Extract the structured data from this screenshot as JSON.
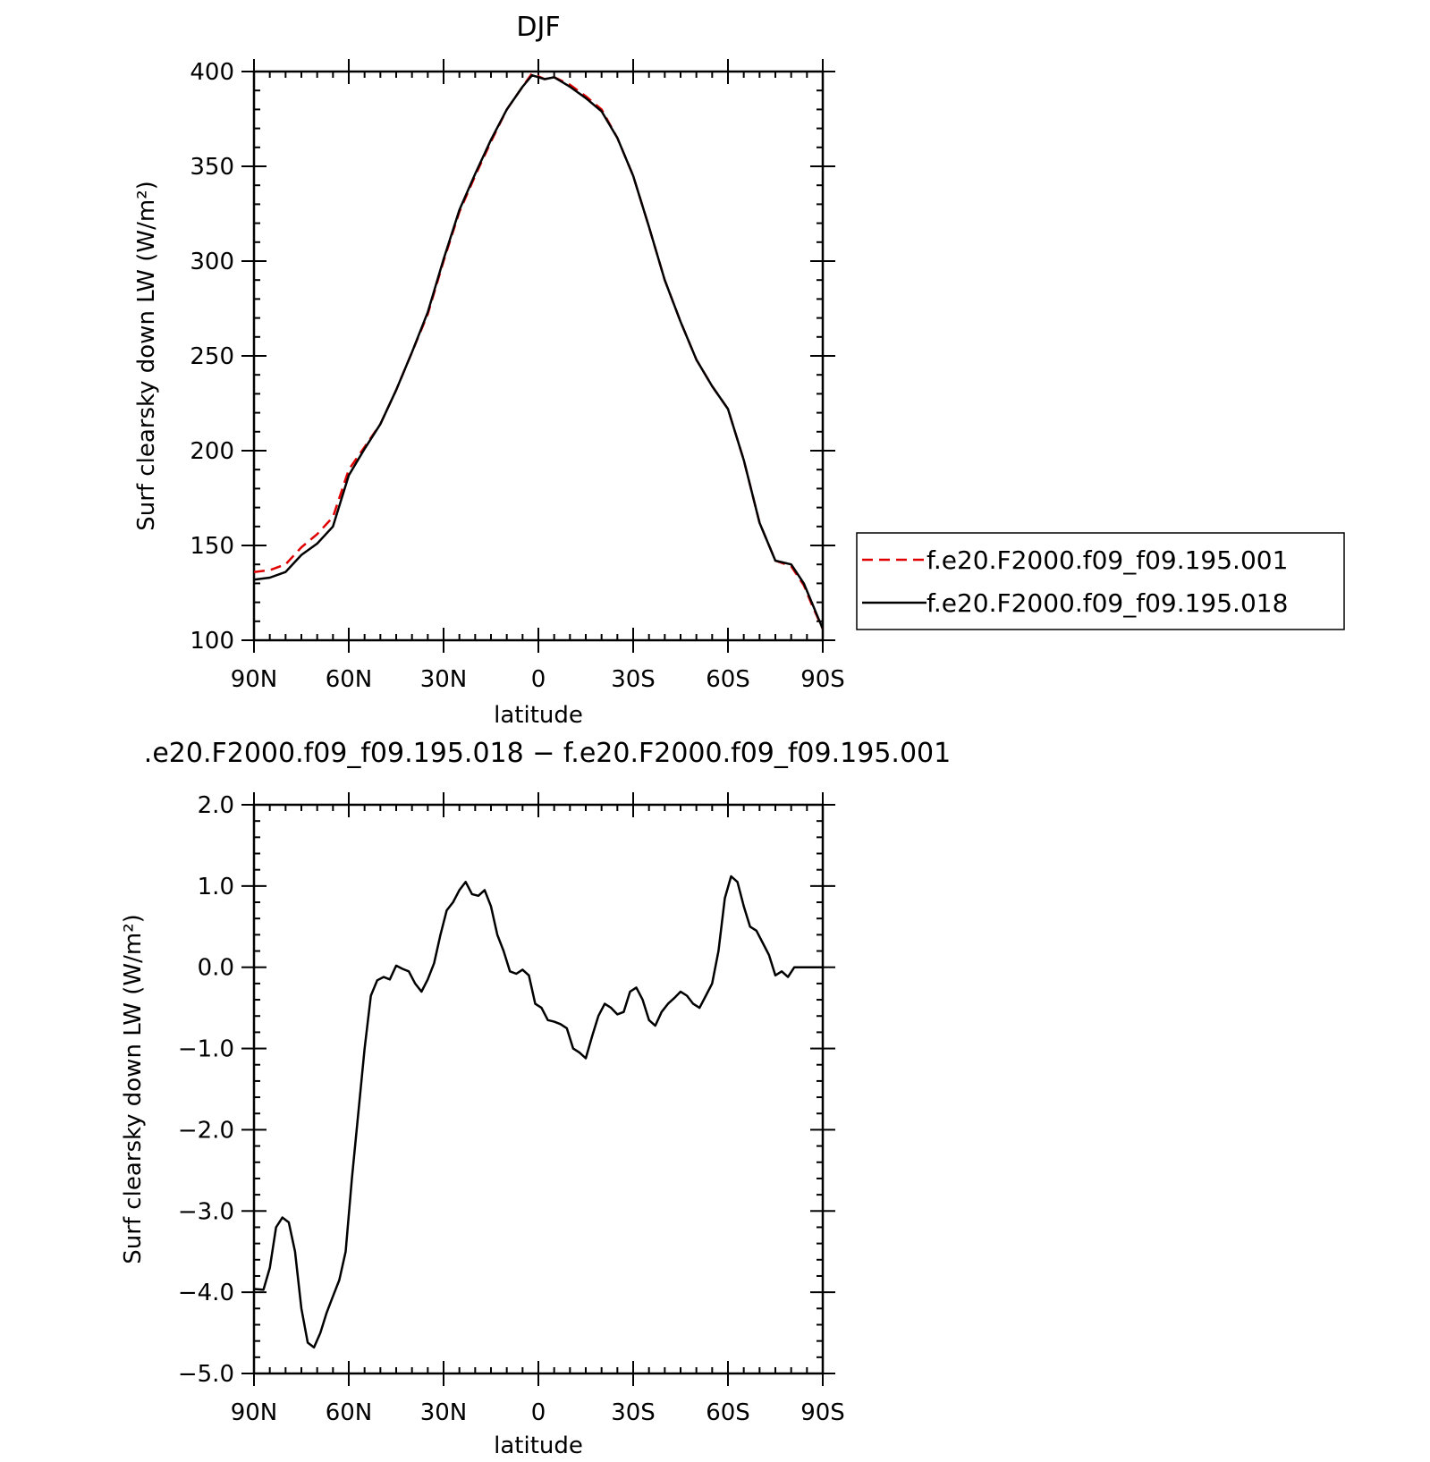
{
  "chart_data": [
    {
      "type": "line",
      "title": "DJF",
      "xlabel": "latitude",
      "ylabel": "Surf clearsky down LW (W/m²)",
      "xlim": [
        90,
        -90
      ],
      "ylim": [
        100,
        400
      ],
      "x_ticks": [
        {
          "value": 90,
          "label": "90N"
        },
        {
          "value": 60,
          "label": "60N"
        },
        {
          "value": 30,
          "label": "30N"
        },
        {
          "value": 0,
          "label": "0"
        },
        {
          "value": -30,
          "label": "30S"
        },
        {
          "value": -60,
          "label": "60S"
        },
        {
          "value": -90,
          "label": "90S"
        }
      ],
      "y_ticks": [
        "100",
        "150",
        "200",
        "250",
        "300",
        "350",
        "400"
      ],
      "grid": false,
      "legend_position": "right",
      "series": [
        {
          "name": "f.e20.F2000.f09_f09.195.001",
          "color": "#e00000",
          "dash": "dashed",
          "x": [
            90,
            85,
            80,
            75,
            70,
            65,
            60,
            55,
            50,
            45,
            40,
            35,
            30,
            25,
            20,
            15,
            10,
            5,
            2,
            -2,
            -5,
            -10,
            -15,
            -20,
            -25,
            -30,
            -35,
            -40,
            -45,
            -50,
            -55,
            -60,
            -65,
            -70,
            -75,
            -80,
            -84,
            -87,
            -90
          ],
          "y": [
            136,
            137,
            140,
            149,
            156,
            165,
            190,
            202,
            214,
            232,
            252,
            272,
            300,
            326,
            345,
            363,
            380,
            392,
            399,
            396,
            397,
            393,
            387,
            380,
            365,
            345,
            318,
            290,
            268,
            248,
            234,
            222,
            195,
            162,
            142,
            139,
            129,
            117,
            106
          ]
        },
        {
          "name": "f.e20.F2000.f09_f09.195.018",
          "color": "#000000",
          "dash": "solid",
          "x": [
            90,
            85,
            80,
            75,
            70,
            65,
            60,
            55,
            50,
            45,
            40,
            35,
            30,
            25,
            20,
            15,
            10,
            5,
            2,
            -2,
            -5,
            -10,
            -15,
            -20,
            -25,
            -30,
            -35,
            -40,
            -45,
            -50,
            -55,
            -60,
            -65,
            -70,
            -75,
            -80,
            -84,
            -87,
            -90
          ],
          "y": [
            132,
            133,
            136,
            145,
            151,
            160,
            187,
            201,
            214,
            232,
            252,
            273,
            301,
            327,
            346,
            364,
            380,
            392,
            398,
            396,
            397,
            392,
            386,
            379,
            365,
            345,
            318,
            290,
            268,
            248,
            234,
            222,
            195,
            162,
            142,
            140,
            130,
            118,
            106
          ]
        }
      ]
    },
    {
      "type": "line",
      "title": ".e20.F2000.f09_f09.195.018 − f.e20.F2000.f09_f09.195.001",
      "xlabel": "latitude",
      "ylabel": "Surf clearsky down LW (W/m²)",
      "xlim": [
        90,
        -90
      ],
      "ylim": [
        -5.0,
        2.0
      ],
      "x_ticks": [
        {
          "value": 90,
          "label": "90N"
        },
        {
          "value": 60,
          "label": "60N"
        },
        {
          "value": 30,
          "label": "30N"
        },
        {
          "value": 0,
          "label": "0"
        },
        {
          "value": -30,
          "label": "30S"
        },
        {
          "value": -60,
          "label": "60S"
        },
        {
          "value": -90,
          "label": "90S"
        }
      ],
      "y_ticks": [
        "−5.0",
        "−4.0",
        "−3.0",
        "−2.0",
        "−1.0",
        "0.0",
        "1.0",
        "2.0"
      ],
      "grid": false,
      "series": [
        {
          "color": "#000000",
          "dash": "solid",
          "x": [
            90,
            87,
            85,
            83,
            81,
            79,
            77,
            75,
            73,
            71,
            69,
            67,
            65,
            63,
            61,
            59,
            57,
            55,
            53,
            51,
            49,
            47,
            45,
            43,
            41,
            39,
            37,
            35,
            33,
            31,
            29,
            27,
            25,
            23,
            21,
            19,
            17,
            15,
            13,
            11,
            9,
            7,
            5,
            3,
            1,
            -1,
            -3,
            -5,
            -7,
            -9,
            -11,
            -13,
            -15,
            -17,
            -19,
            -21,
            -23,
            -25,
            -27,
            -29,
            -31,
            -33,
            -35,
            -37,
            -39,
            -41,
            -43,
            -45,
            -47,
            -49,
            -51,
            -53,
            -55,
            -57,
            -59,
            -61,
            -63,
            -65,
            -67,
            -69,
            -71,
            -73,
            -75,
            -77,
            -79,
            -81,
            -83,
            -85,
            -87,
            -88,
            -90
          ],
          "y": [
            -3.96,
            -3.97,
            -3.7,
            -3.2,
            -3.08,
            -3.14,
            -3.5,
            -4.2,
            -4.62,
            -4.68,
            -4.5,
            -4.25,
            -4.05,
            -3.85,
            -3.5,
            -2.6,
            -1.8,
            -1.0,
            -0.35,
            -0.16,
            -0.12,
            -0.15,
            0.02,
            -0.02,
            -0.05,
            -0.2,
            -0.3,
            -0.15,
            0.05,
            0.4,
            0.7,
            0.8,
            0.95,
            1.05,
            0.9,
            0.88,
            0.95,
            0.75,
            0.4,
            0.2,
            -0.05,
            -0.08,
            -0.03,
            -0.1,
            -0.45,
            -0.5,
            -0.65,
            -0.67,
            -0.7,
            -0.75,
            -1.0,
            -1.05,
            -1.12,
            -0.85,
            -0.6,
            -0.45,
            -0.5,
            -0.58,
            -0.55,
            -0.3,
            -0.25,
            -0.4,
            -0.65,
            -0.72,
            -0.55,
            -0.45,
            -0.38,
            -0.3,
            -0.35,
            -0.45,
            -0.5,
            -0.35,
            -0.2,
            0.2,
            0.85,
            1.12,
            1.05,
            0.75,
            0.5,
            0.45,
            0.3,
            0.15,
            -0.1,
            -0.05,
            -0.12,
            0.0,
            0.0,
            0.0,
            0.0,
            0.0,
            0.0
          ]
        }
      ]
    }
  ]
}
